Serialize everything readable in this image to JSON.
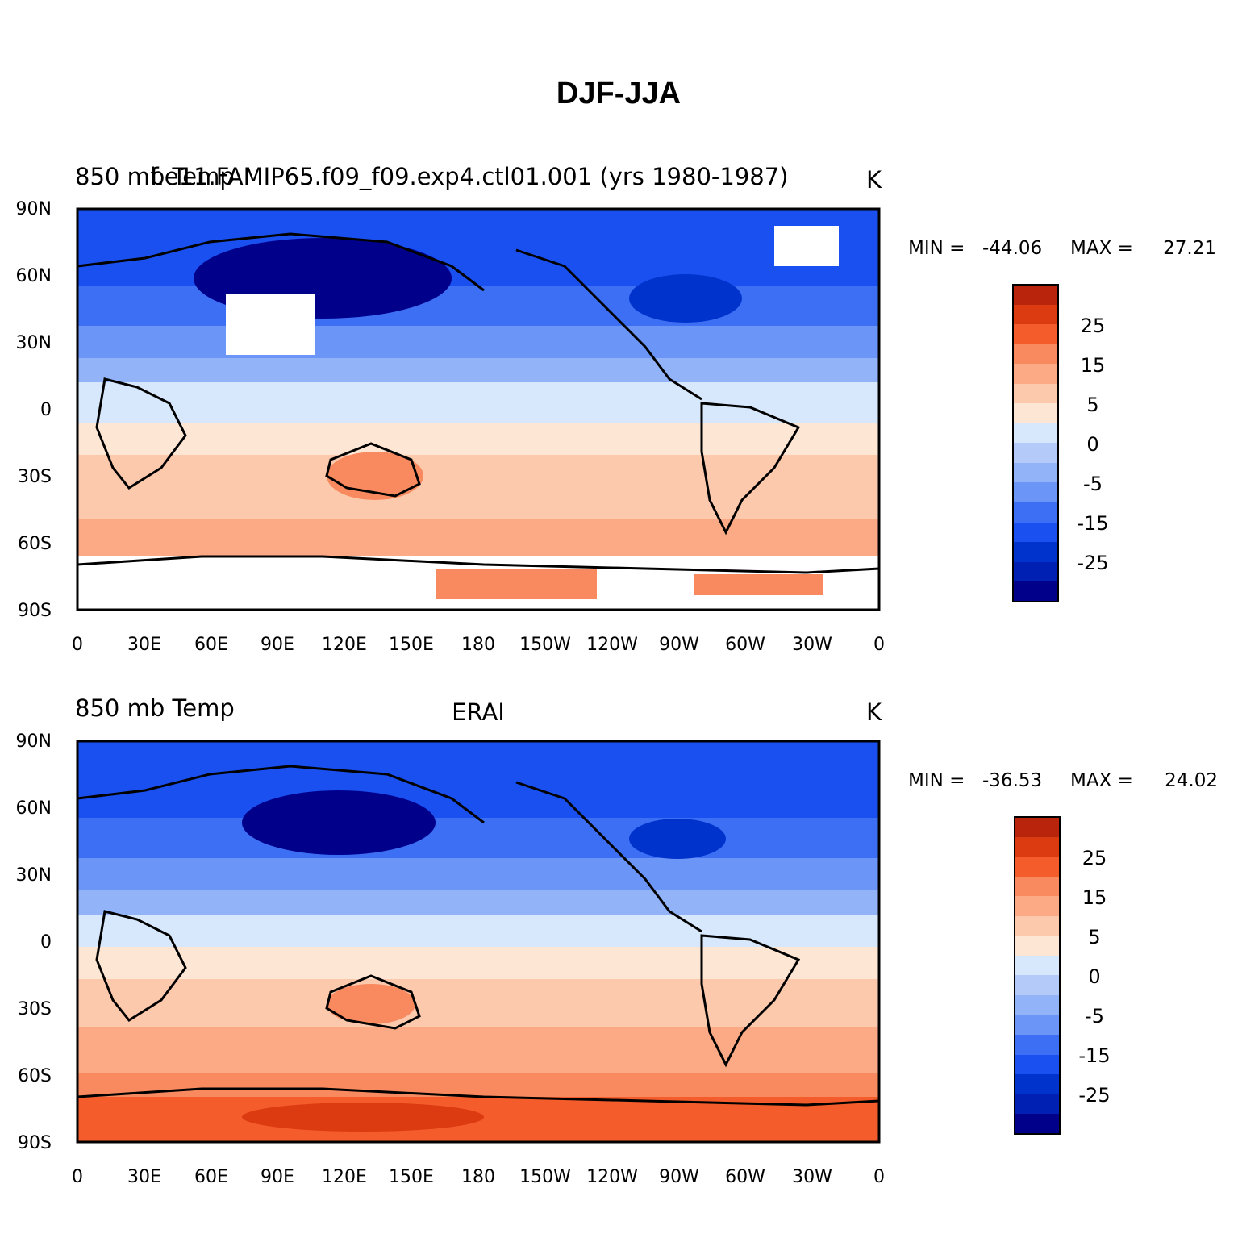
{
  "figure": {
    "title": "DJF-JJA"
  },
  "colorbar": {
    "colors": [
      "#00008b",
      "#0020b4",
      "#0033cc",
      "#1a4ff0",
      "#3d6ff5",
      "#6b95f7",
      "#92b3f8",
      "#b4cbf9",
      "#d7e8fd",
      "#fde6d4",
      "#fcc9ad",
      "#fbaa85",
      "#f98a5f",
      "#f45c2c",
      "#dc3a10",
      "#b8250c",
      "#8b0000"
    ],
    "tick_labels": [
      "-25",
      "-15",
      "-5",
      "0",
      "5",
      "15",
      "25"
    ]
  },
  "axes": {
    "lat_labels": [
      "90N",
      "60N",
      "30N",
      "0",
      "30S",
      "60S",
      "90S"
    ],
    "lon_labels": [
      "0",
      "30E",
      "60E",
      "90E",
      "120E",
      "150E",
      "180",
      "150W",
      "120W",
      "90W",
      "60W",
      "30W",
      "0"
    ]
  },
  "panels": [
    {
      "left_title": "850 mb Temp",
      "center_title": "f.e11.FAMIP65.f09_f09.exp4.ctl01.001 (yrs 1980-1987)",
      "right_title": "K",
      "min_label": "MIN =",
      "min_value": "-44.06",
      "max_label": "MAX =",
      "max_value": "27.21"
    },
    {
      "left_title": "850 mb Temp",
      "center_title": "ERAI",
      "right_title": "K",
      "min_label": "MIN =",
      "min_value": "-36.53",
      "max_label": "MAX =",
      "max_value": "24.02"
    }
  ]
}
